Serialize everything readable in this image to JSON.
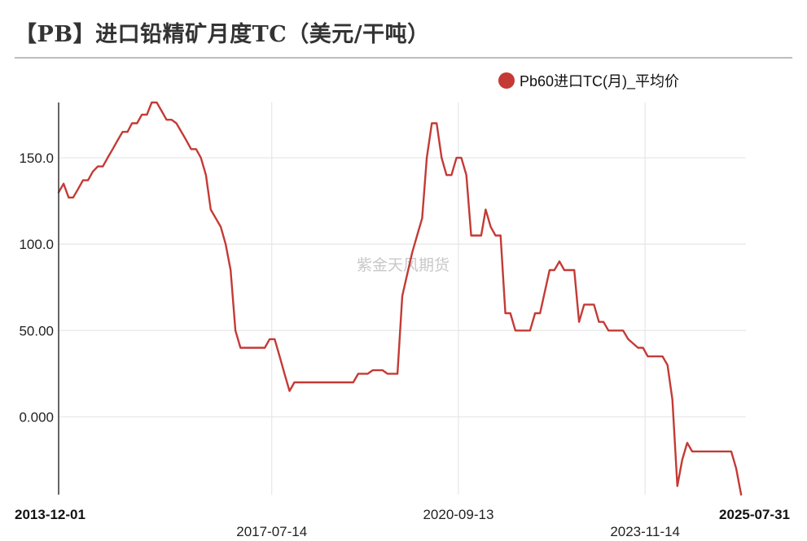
{
  "title": "【PB】进口铅精矿月度TC（美元/干吨）",
  "watermark": "紫金天风期货",
  "colors": {
    "series": "#c43a35",
    "grid": "#e6e6e6",
    "axis": "#333333"
  },
  "chart_data": {
    "type": "line",
    "title": "【PB】进口铅精矿月度TC（美元/干吨）",
    "xlabel": "",
    "ylabel": "",
    "ylim": [
      -45,
      182
    ],
    "xlim": [
      "2013-12-01",
      "2025-07-31"
    ],
    "y_ticks": [
      0,
      50,
      100,
      150
    ],
    "y_tick_labels": [
      "0.000",
      "50.00",
      "100.0",
      "150.0"
    ],
    "x_ticks": [
      "2013-12-01",
      "2017-07-14",
      "2020-09-13",
      "2023-11-14",
      "2025-07-31"
    ],
    "x_tick_labels": [
      "2013-12-01",
      "2017-07-14",
      "2020-09-13",
      "2023-11-14",
      "2025-07-31"
    ],
    "grid": true,
    "legend_position": "top-right",
    "series": [
      {
        "name": "Pb60进口TC(月)_平均价",
        "x": [
          "2013-12-01",
          "2014-01-01",
          "2014-02-01",
          "2014-03-01",
          "2014-04-01",
          "2014-05-01",
          "2014-06-01",
          "2014-07-01",
          "2014-08-01",
          "2014-09-01",
          "2014-10-01",
          "2014-11-01",
          "2014-12-01",
          "2015-01-01",
          "2015-02-01",
          "2015-03-01",
          "2015-04-01",
          "2015-05-01",
          "2015-06-01",
          "2015-07-01",
          "2015-08-01",
          "2015-09-01",
          "2015-10-01",
          "2015-11-01",
          "2015-12-01",
          "2016-01-01",
          "2016-02-01",
          "2016-03-01",
          "2016-04-01",
          "2016-05-01",
          "2016-06-01",
          "2016-07-01",
          "2016-08-01",
          "2016-09-01",
          "2016-10-01",
          "2016-11-01",
          "2016-12-01",
          "2017-01-01",
          "2017-02-01",
          "2017-03-01",
          "2017-04-01",
          "2017-05-01",
          "2017-06-01",
          "2017-07-01",
          "2017-08-01",
          "2017-09-01",
          "2017-10-01",
          "2017-11-01",
          "2017-12-01",
          "2018-01-01",
          "2018-03-01",
          "2018-06-01",
          "2018-09-01",
          "2018-12-01",
          "2019-01-01",
          "2019-03-01",
          "2019-04-01",
          "2019-06-01",
          "2019-07-01",
          "2019-09-01",
          "2019-10-01",
          "2019-12-01",
          "2020-01-01",
          "2020-02-01",
          "2020-03-01",
          "2020-04-01",
          "2020-05-01",
          "2020-06-01",
          "2020-07-01",
          "2020-08-01",
          "2020-09-01",
          "2020-10-01",
          "2020-11-01",
          "2020-12-01",
          "2021-01-01",
          "2021-02-01",
          "2021-03-01",
          "2021-04-01",
          "2021-05-01",
          "2021-06-01",
          "2021-07-01",
          "2021-08-01",
          "2021-09-01",
          "2021-10-01",
          "2021-12-01",
          "2022-01-01",
          "2022-02-01",
          "2022-04-01",
          "2022-05-01",
          "2022-06-01",
          "2022-07-01",
          "2022-08-01",
          "2022-09-01",
          "2022-10-01",
          "2022-11-01",
          "2023-01-01",
          "2023-02-01",
          "2023-03-01",
          "2023-04-01",
          "2023-05-01",
          "2023-06-01",
          "2023-07-01",
          "2023-08-01",
          "2023-10-01",
          "2023-11-01",
          "2023-12-01",
          "2024-01-01",
          "2024-02-01",
          "2024-03-01",
          "2024-04-01",
          "2024-05-01",
          "2024-06-01",
          "2024-07-01",
          "2024-08-01",
          "2024-09-01",
          "2024-10-01",
          "2024-11-01",
          "2024-12-01",
          "2025-01-01",
          "2025-03-01",
          "2025-05-01",
          "2025-06-01",
          "2025-07-01"
        ],
        "values": [
          130,
          135,
          127,
          127,
          132,
          137,
          137,
          142,
          145,
          145,
          150,
          155,
          160,
          165,
          165,
          170,
          170,
          175,
          175,
          182,
          182,
          177,
          172,
          172,
          170,
          165,
          160,
          155,
          155,
          150,
          140,
          120,
          115,
          110,
          100,
          85,
          50,
          40,
          40,
          40,
          40,
          40,
          40,
          45,
          45,
          35,
          25,
          15,
          20,
          20,
          20,
          20,
          20,
          20,
          25,
          25,
          27,
          27,
          25,
          25,
          70,
          95,
          105,
          115,
          150,
          170,
          170,
          150,
          140,
          140,
          150,
          150,
          140,
          105,
          105,
          105,
          120,
          110,
          105,
          105,
          60,
          60,
          50,
          50,
          50,
          60,
          60,
          85,
          85,
          90,
          85,
          85,
          85,
          55,
          65,
          65,
          55,
          55,
          50,
          50,
          50,
          50,
          45,
          40,
          40,
          35,
          35,
          35,
          35,
          30,
          10,
          -40,
          -25,
          -15,
          -20,
          -20,
          -20,
          -20,
          -20,
          -20,
          -20,
          -30,
          -45
        ]
      }
    ]
  }
}
